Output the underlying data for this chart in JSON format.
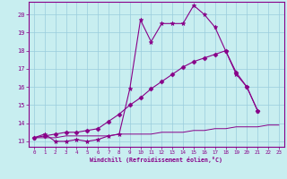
{
  "xlabel": "Windchill (Refroidissement éolien,°C)",
  "xlim": [
    -0.5,
    23.5
  ],
  "ylim": [
    12.7,
    20.7
  ],
  "xticks": [
    0,
    1,
    2,
    3,
    4,
    5,
    6,
    7,
    8,
    9,
    10,
    11,
    12,
    13,
    14,
    15,
    16,
    17,
    18,
    19,
    20,
    21,
    22,
    23
  ],
  "yticks": [
    13,
    14,
    15,
    16,
    17,
    18,
    19,
    20
  ],
  "bg_color": "#c8eef0",
  "line_color": "#880088",
  "grid_color": "#99ccdd",
  "lines": [
    {
      "x": [
        0,
        1,
        2,
        3,
        4,
        5,
        6,
        7,
        8,
        9,
        10,
        11,
        12,
        13,
        14,
        15,
        16,
        17,
        18,
        19,
        20,
        21
      ],
      "y": [
        13.2,
        13.4,
        13.0,
        13.0,
        13.1,
        13.0,
        13.1,
        13.3,
        13.4,
        15.9,
        19.7,
        18.5,
        19.5,
        19.5,
        19.5,
        20.5,
        20.0,
        19.3,
        18.0,
        16.7,
        16.0,
        14.7
      ],
      "marker": "*",
      "markersize": 3.5,
      "lw": 0.8
    },
    {
      "x": [
        0,
        1,
        2,
        3,
        4,
        5,
        6,
        7,
        8,
        9,
        10,
        11,
        12,
        13,
        14,
        15,
        16,
        17,
        18,
        19,
        20,
        21,
        22,
        23
      ],
      "y": [
        13.2,
        13.3,
        13.4,
        13.5,
        13.5,
        13.6,
        13.7,
        14.1,
        14.5,
        15.0,
        15.4,
        15.9,
        16.3,
        16.7,
        17.1,
        17.4,
        17.6,
        17.8,
        18.0,
        16.8,
        16.0,
        14.7,
        null,
        null
      ],
      "marker": "D",
      "markersize": 2.5,
      "lw": 0.8
    },
    {
      "x": [
        0,
        1,
        2,
        3,
        4,
        5,
        6,
        7,
        8,
        9,
        10,
        11,
        12,
        13,
        14,
        15,
        16,
        17,
        18,
        19,
        20,
        21,
        22,
        23
      ],
      "y": [
        13.2,
        13.2,
        13.2,
        13.3,
        13.3,
        13.3,
        13.3,
        13.3,
        13.4,
        13.4,
        13.4,
        13.4,
        13.5,
        13.5,
        13.5,
        13.6,
        13.6,
        13.7,
        13.7,
        13.8,
        13.8,
        13.8,
        13.9,
        13.9
      ],
      "marker": null,
      "markersize": 0,
      "lw": 0.7
    }
  ]
}
